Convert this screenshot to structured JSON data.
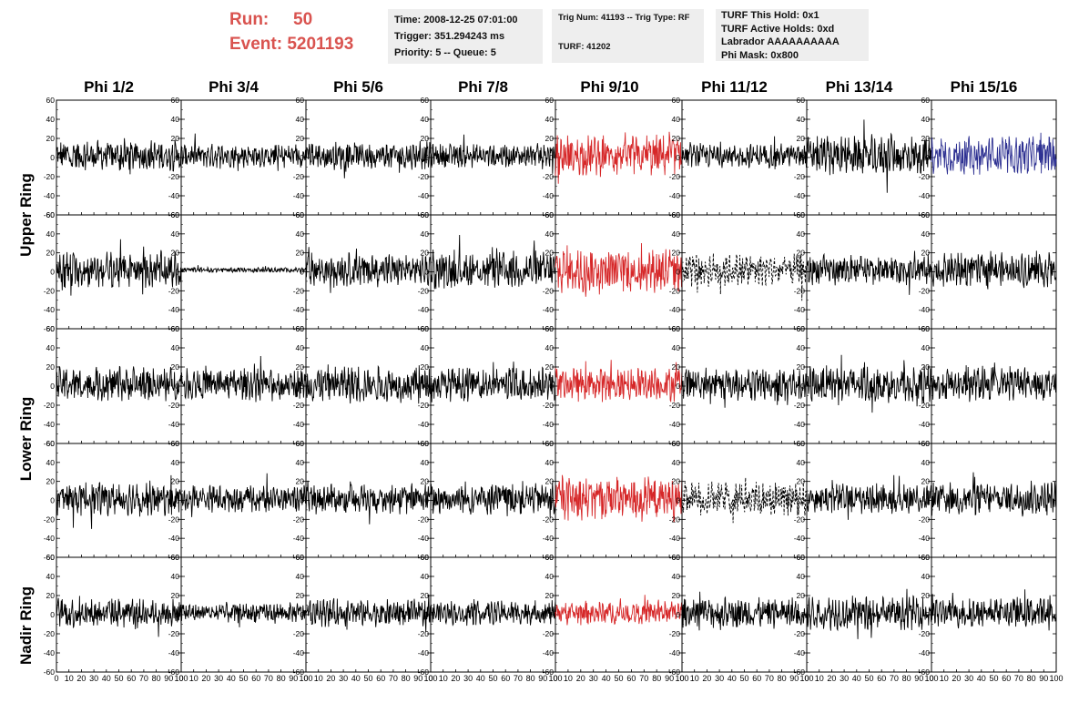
{
  "header": {
    "run_label": "Run:",
    "run_value": "50",
    "event_label": "Event:",
    "event_value": "5201193"
  },
  "info_boxes": [
    [
      "Time: 2008-12-25 07:01:00",
      "Trigger: 351.294243 ms",
      "Priority: 5 -- Queue: 5"
    ],
    [
      "Trig Num: 41193 -- Trig Type: RF",
      "",
      "TURF: 41202"
    ],
    [
      "TURF This Hold: 0x1",
      "TURF Active Holds: 0xd",
      "Labrador AAAAAAAAAA",
      "Phi Mask: 0x800"
    ]
  ],
  "phi_headers": [
    "Phi 1/2",
    "Phi 3/4",
    "Phi 5/6",
    "Phi 7/8",
    "Phi 9/10",
    "Phi 11/12",
    "Phi 13/14",
    "Phi 15/16"
  ],
  "ring_labels": [
    "Upper Ring",
    "Lower Ring",
    "Nadir Ring"
  ],
  "colors": {
    "default_trace": "#000000",
    "triggered_phi_trace": "#d62728",
    "masked_phi_trace": "#2e3192",
    "header_accent": "#d9534f",
    "info_box_bg": "#eeeeee"
  },
  "chart_data": {
    "type": "line",
    "layout": "grid",
    "rows": 5,
    "cols": 8,
    "xlim": [
      0,
      100
    ],
    "ylim": [
      -60,
      60
    ],
    "x_ticks": [
      0,
      10,
      20,
      30,
      40,
      50,
      60,
      70,
      80,
      90,
      100
    ],
    "x_tick_labels": [
      "0",
      "10",
      "20",
      "30",
      "40",
      "50",
      "60",
      "70",
      "80",
      "90",
      "100"
    ],
    "y_ticks": [
      -60,
      -40,
      -20,
      0,
      20,
      40,
      60
    ],
    "y_tick_labels": [
      "-60",
      "-40",
      "-20",
      "0",
      "20",
      "40",
      "60"
    ],
    "grid": false,
    "panels_approx_amplitude": [
      [
        18,
        14,
        16,
        14,
        24,
        14,
        24,
        22
      ],
      [
        22,
        3,
        20,
        22,
        28,
        20,
        18,
        20
      ],
      [
        20,
        18,
        22,
        20,
        20,
        20,
        22,
        20
      ],
      [
        20,
        16,
        18,
        20,
        26,
        20,
        18,
        20
      ],
      [
        18,
        12,
        16,
        14,
        14,
        18,
        20,
        18
      ]
    ],
    "panel_styles": [
      [
        "solid",
        "solid",
        "solid",
        "solid",
        "red",
        "solid",
        "solid",
        "blue"
      ],
      [
        "solid",
        "solid",
        "solid",
        "solid",
        "red",
        "dashed",
        "solid",
        "solid"
      ],
      [
        "solid",
        "solid",
        "solid",
        "solid",
        "red",
        "solid",
        "solid",
        "solid"
      ],
      [
        "solid",
        "solid",
        "solid",
        "solid",
        "red",
        "dashed",
        "solid",
        "solid"
      ],
      [
        "solid",
        "solid",
        "solid",
        "solid",
        "red",
        "solid",
        "solid",
        "solid"
      ]
    ],
    "samples_per_trace": 260
  }
}
